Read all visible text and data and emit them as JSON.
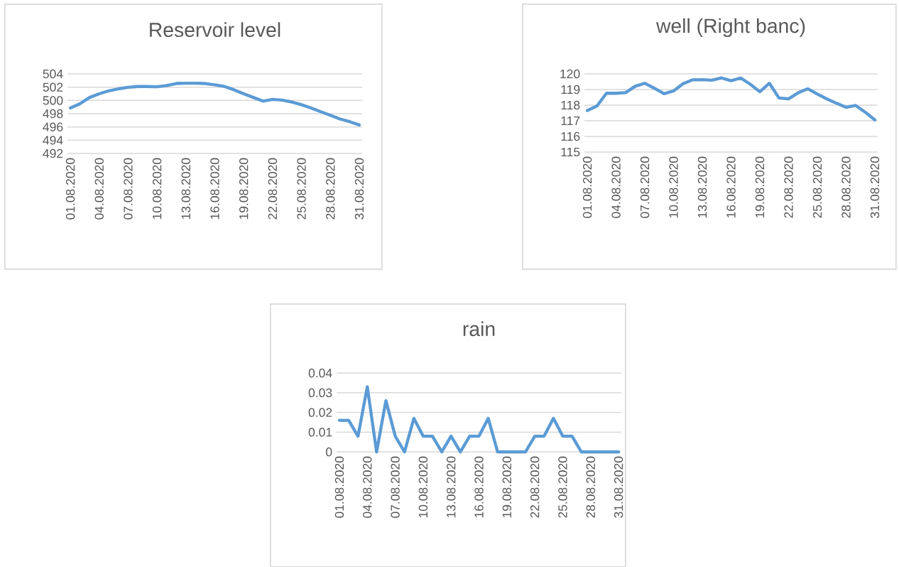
{
  "chart_data": [
    {
      "type": "line",
      "title": "Reservoir level",
      "categories": [
        "01.08.2020",
        null,
        null,
        "04.08.2020",
        null,
        null,
        "07.08.2020",
        null,
        null,
        "10.08.2020",
        null,
        null,
        "13.08.2020",
        null,
        null,
        "16.08.2020",
        null,
        null,
        "19.08.2020",
        null,
        null,
        "22.08.2020",
        null,
        null,
        "25.08.2020",
        null,
        null,
        "28.08.2020",
        null,
        null,
        "31.08.2020"
      ],
      "series": [
        {
          "color": "#5b9bd5",
          "values": [
            498.86,
            499.5,
            500.45,
            501.0,
            501.45,
            501.75,
            501.98,
            502.1,
            502.1,
            502.05,
            502.25,
            502.55,
            502.6,
            502.6,
            502.55,
            502.35,
            502.1,
            501.6,
            501.0,
            500.45,
            499.9,
            500.15,
            500.05,
            499.75,
            499.35,
            498.85,
            498.3,
            497.75,
            497.2,
            496.8,
            496.3
          ]
        }
      ],
      "ylim": [
        492,
        504
      ],
      "yticks": [
        492,
        494,
        496,
        498,
        500,
        502,
        504
      ],
      "grid": "y"
    },
    {
      "type": "line",
      "title": "well (Right banc)",
      "categories": [
        "01.08.2020",
        null,
        null,
        "04.08.2020",
        null,
        null,
        "07.08.2020",
        null,
        null,
        "10.08.2020",
        null,
        null,
        "13.08.2020",
        null,
        null,
        "16.08.2020",
        null,
        null,
        "19.08.2020",
        null,
        null,
        "22.08.2020",
        null,
        null,
        "25.08.2020",
        null,
        null,
        "28.08.2020",
        null,
        null,
        "31.08.2020"
      ],
      "series": [
        {
          "color": "#5b9bd5",
          "values": [
            117.66,
            117.94,
            118.76,
            118.76,
            118.8,
            119.21,
            119.4,
            119.08,
            118.73,
            118.91,
            119.37,
            119.62,
            119.63,
            119.6,
            119.74,
            119.56,
            119.74,
            119.34,
            118.86,
            119.4,
            118.46,
            118.4,
            118.79,
            119.05,
            118.71,
            118.4,
            118.12,
            117.86,
            117.98,
            117.55,
            117.06
          ]
        }
      ],
      "ylim": [
        115,
        120
      ],
      "yticks": [
        115,
        116,
        117,
        118,
        119,
        120
      ],
      "grid": "y"
    },
    {
      "type": "line",
      "title": "rain",
      "categories": [
        "01.08.2020",
        null,
        null,
        "04.08.2020",
        null,
        null,
        "07.08.2020",
        null,
        null,
        "10.08.2020",
        null,
        null,
        "13.08.2020",
        null,
        null,
        "16.08.2020",
        null,
        null,
        "19.08.2020",
        null,
        null,
        "22.08.2020",
        null,
        null,
        "25.08.2020",
        null,
        null,
        "28.08.2020",
        null,
        null,
        "31.08.2020"
      ],
      "series": [
        {
          "color": "#5b9bd5",
          "values": [
            0.016,
            0.016,
            0.008,
            0.033,
            0,
            0.026,
            0.008,
            0,
            0.017,
            0.008,
            0.008,
            0,
            0.008,
            0,
            0.008,
            0.008,
            0.017,
            0,
            0,
            0,
            0,
            0.008,
            0.008,
            0.017,
            0.008,
            0.008,
            0,
            0,
            0,
            0,
            0
          ]
        }
      ],
      "ylim": [
        0,
        0.04
      ],
      "yticks": [
        0,
        0.01,
        0.02,
        0.03,
        0.04
      ],
      "grid": "y"
    }
  ]
}
